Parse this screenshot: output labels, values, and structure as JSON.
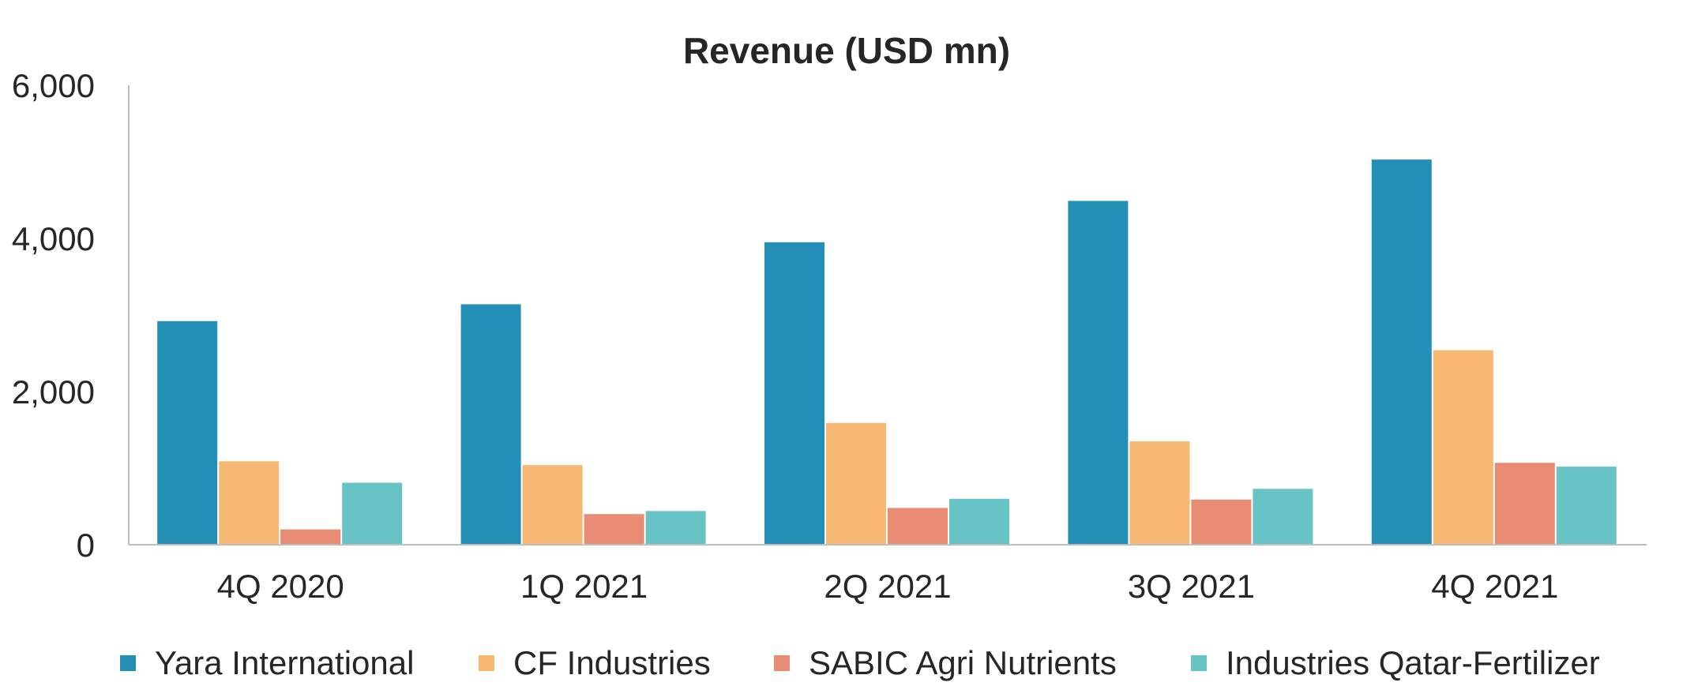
{
  "chart_data": {
    "type": "bar",
    "title": "Revenue (USD mn)",
    "xlabel": "",
    "ylabel": "",
    "ylim": [
      0,
      6000
    ],
    "yticks": [
      0,
      2000,
      4000,
      6000
    ],
    "ytick_labels": [
      "0",
      "2,000",
      "4,000",
      "6,000"
    ],
    "categories": [
      "4Q 2020",
      "1Q 2021",
      "2Q 2021",
      "3Q 2021",
      "4Q 2021"
    ],
    "series": [
      {
        "name": "Yara International",
        "color": "#238eb6",
        "values": [
          2920,
          3140,
          3950,
          4490,
          5030
        ]
      },
      {
        "name": "CF Industries",
        "color": "#f6b873",
        "values": [
          1090,
          1040,
          1590,
          1350,
          2540
        ]
      },
      {
        "name": "SABIC Agri Nutrients",
        "color": "#e98c73",
        "values": [
          200,
          400,
          480,
          590,
          1070
        ]
      },
      {
        "name": "Industries Qatar-Fertilizer",
        "color": "#68c3c5",
        "values": [
          810,
          440,
          600,
          730,
          1020
        ]
      }
    ],
    "grid": false,
    "legend_position": "bottom"
  }
}
